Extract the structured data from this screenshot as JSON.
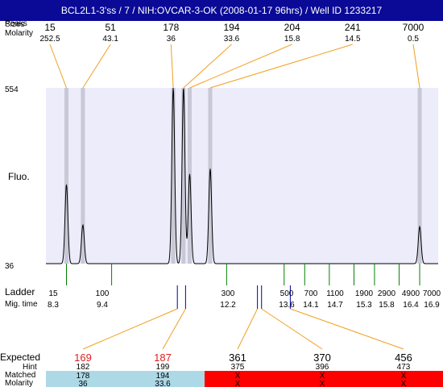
{
  "title": "BCL2L1-3'ss / 7 / NIH:OVCAR-3-OK (2008-01-17 96hrs) / Well ID 1233217",
  "colors": {
    "header": "#0a0a96",
    "plot_bg": "#ececfa",
    "peak_band": "#c8c8d6",
    "orange": "#f0a020",
    "green": "#008000",
    "blue": "#0000aa",
    "expected_red": "#e02020",
    "matched_bg": "#add8e6",
    "unmatched_bg": "#ff0000"
  },
  "top_table": {
    "row_labels": [
      "Peaks",
      "Sizes",
      "Molarity"
    ],
    "sizes": [
      "15",
      "51",
      "178",
      "194",
      "204",
      "241",
      "7000"
    ],
    "molarity": [
      "252.5",
      "43.1",
      "36",
      "33.6",
      "15.8",
      "14.5",
      "0.5"
    ]
  },
  "fluo_label": "Fluo.",
  "ladder": {
    "label": "Ladder",
    "mig_label": "Mig. time",
    "sizes": [
      "15",
      "100",
      "300",
      "500",
      "700",
      "1100",
      "1900",
      "2900",
      "4900",
      "7000"
    ],
    "mig_times": [
      "8.3",
      "9.4",
      "12.2",
      "13.6",
      "14.1",
      "14.7",
      "15.3",
      "15.8",
      "16.4",
      "16.9"
    ]
  },
  "bottom_table": {
    "expected_label": "Expected",
    "hint_label": "Hint",
    "matched_label": "Matched",
    "molarity_label": "Molarity",
    "expected": [
      "169",
      "187",
      "361",
      "370",
      "456"
    ],
    "hint": [
      "182",
      "199",
      "375",
      "396",
      "473"
    ],
    "matched": [
      "178",
      "194",
      "X",
      "X",
      "X"
    ],
    "molarity": [
      "36",
      "33.6",
      "X",
      "X",
      "X"
    ],
    "matched_flags": [
      true,
      true,
      false,
      false,
      false
    ]
  },
  "chart_data": {
    "type": "line",
    "title": "BCL2L1-3'ss / 7 / NIH:OVCAR-3-OK (2008-01-17 96hrs) / Well ID 1233217",
    "ylabel": "Fluo.",
    "xlabel": "",
    "y_ticks": [
      "554",
      "36"
    ],
    "ylim": [
      36,
      554
    ],
    "xlim": [
      7.8,
      17.35
    ],
    "grid": false,
    "peaks": [
      {
        "size": "15",
        "mig_time": 8.3,
        "molarity": "252.5",
        "height": 0.45
      },
      {
        "size": "51",
        "mig_time": 8.7,
        "molarity": "43.1",
        "height": 0.22
      },
      {
        "size": "178",
        "mig_time": 10.9,
        "molarity": "36",
        "height": 1.0
      },
      {
        "size": "194",
        "mig_time": 11.15,
        "molarity": "33.6",
        "height": 1.0
      },
      {
        "size": "204",
        "mig_time": 11.3,
        "molarity": "15.8",
        "height": 0.51
      },
      {
        "size": "241",
        "mig_time": 11.8,
        "molarity": "14.5",
        "height": 0.54
      },
      {
        "size": "7000",
        "mig_time": 16.9,
        "molarity": "0.5",
        "height": 0.21
      }
    ],
    "ladder_mig_times": [
      8.3,
      9.4,
      12.2,
      13.6,
      14.1,
      14.7,
      15.3,
      15.8,
      16.4,
      16.9
    ],
    "expected_mig_times": [
      11.0,
      11.2,
      12.95,
      13.05,
      13.75
    ]
  }
}
